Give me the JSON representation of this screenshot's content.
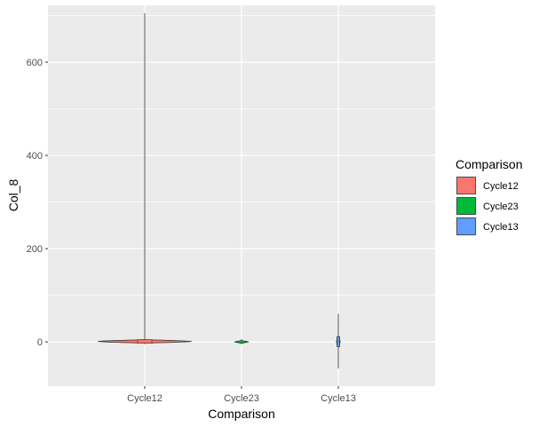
{
  "chart_data": {
    "type": "violin",
    "title": "",
    "xlabel": "Comparison",
    "ylabel": "Col_8",
    "ylim": [
      -95,
      722
    ],
    "yticks": [
      0,
      200,
      400,
      600
    ],
    "grid": true,
    "categories": [
      "Cycle12",
      "Cycle23",
      "Cycle13"
    ],
    "series": [
      {
        "name": "Cycle12",
        "color": "#F8766D",
        "min": -5,
        "max": 705,
        "q1": -1,
        "median": 1,
        "q3": 3,
        "body_halfwidth": 0.95
      },
      {
        "name": "Cycle23",
        "color": "#00BA38",
        "min": -5,
        "max": 6,
        "q1": -1,
        "median": 0,
        "q3": 1,
        "body_halfwidth": 0.12
      },
      {
        "name": "Cycle13",
        "color": "#619CFF",
        "min": -57,
        "max": 60,
        "q1": -4,
        "median": 0,
        "q3": 5,
        "body_halfwidth": 0.02
      }
    ],
    "legend": {
      "title": "Comparison",
      "placement": "right",
      "entries": [
        "Cycle12",
        "Cycle23",
        "Cycle13"
      ]
    }
  }
}
